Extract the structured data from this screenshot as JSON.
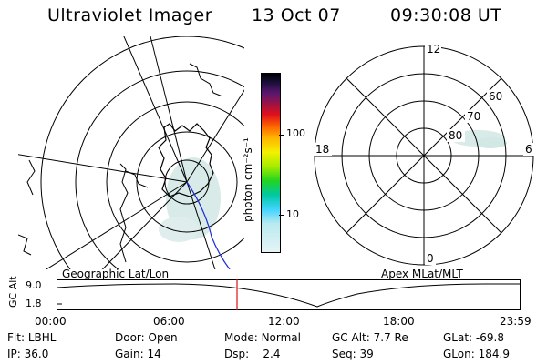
{
  "header": {
    "title": "Ultraviolet Imager",
    "date": "13 Oct 07",
    "time": "09:30:08 UT"
  },
  "geo_panel": {
    "label": "Geographic Lat/Lon"
  },
  "colorbar": {
    "unit_label": "photon cm⁻²s⁻¹",
    "ticks": [
      "100",
      "10"
    ]
  },
  "polar_panel": {
    "label": "Apex MLat/MLT",
    "mlt_labels": {
      "top": "12",
      "left": "18",
      "right": "6",
      "bottom": "0"
    },
    "lat_labels": [
      "60",
      "70",
      "80"
    ]
  },
  "altitude_plot": {
    "ylabel": "GC Alt",
    "yticks": [
      "9.0",
      "1.8"
    ],
    "xticks": [
      "00:00",
      "06:00",
      "12:00",
      "18:00",
      "23:59"
    ],
    "marker_color": "#e01010"
  },
  "status": {
    "row1": [
      {
        "label": "Flt:",
        "value": "LBHL"
      },
      {
        "label": "Door:",
        "value": "Open"
      },
      {
        "label": "Mode:",
        "value": "Normal"
      },
      {
        "label": "GC Alt:",
        "value": "7.7 Re"
      },
      {
        "label": "GLat:",
        "value": "-69.8"
      }
    ],
    "row2": [
      {
        "label": "IP:",
        "value": "36.0"
      },
      {
        "label": "Gain:",
        "value": "14"
      },
      {
        "label": "Dsp:",
        "value": "2.4"
      },
      {
        "label": "Seq:",
        "value": "39"
      },
      {
        "label": "GLon:",
        "value": "184.9"
      }
    ]
  }
}
